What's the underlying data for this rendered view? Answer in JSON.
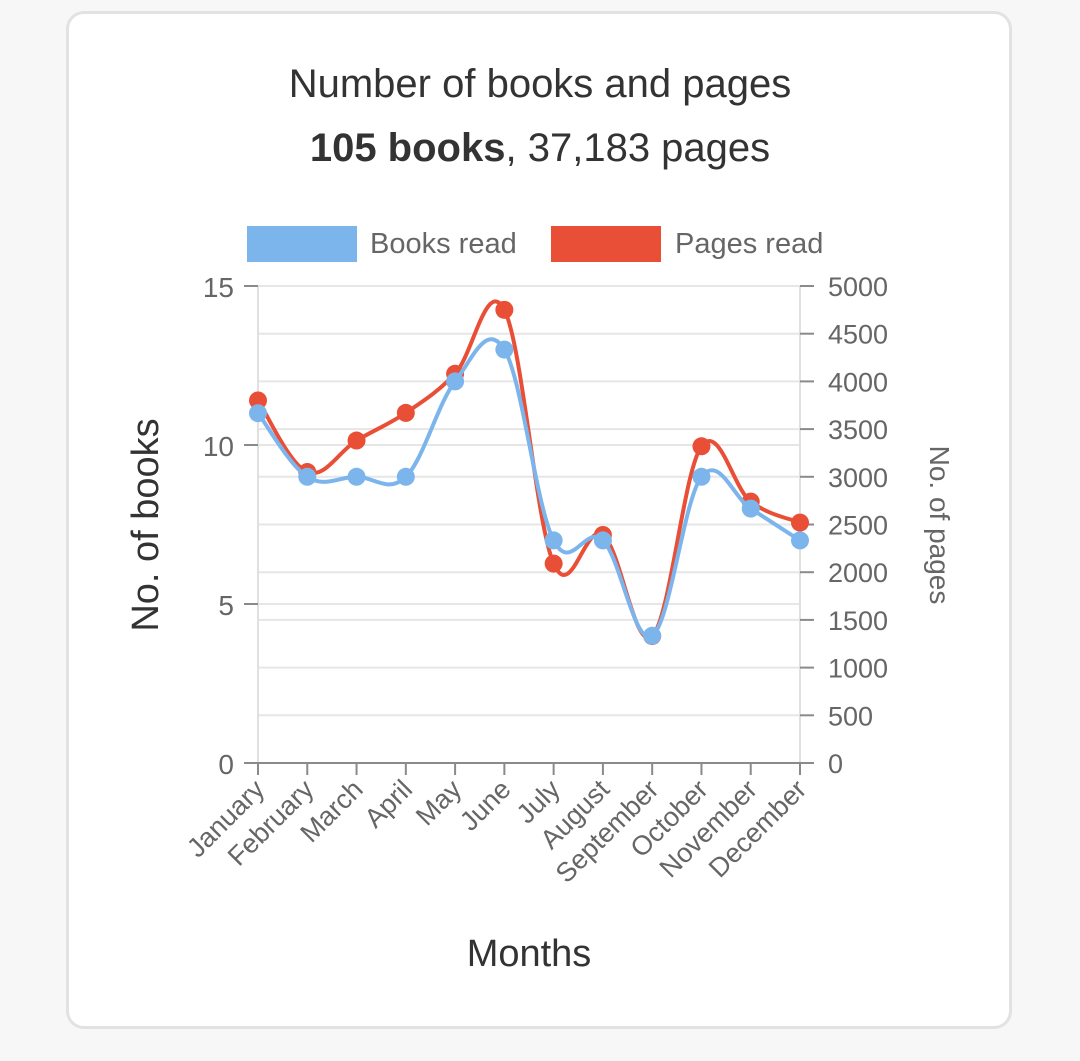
{
  "title": "Number of books and pages",
  "subtitle": {
    "books": "105 books",
    "separator": ", ",
    "pages": "37,183 pages"
  },
  "chart_data": {
    "type": "line",
    "xlabel": "Months",
    "categories": [
      "January",
      "February",
      "March",
      "April",
      "May",
      "June",
      "July",
      "August",
      "September",
      "October",
      "November",
      "December"
    ],
    "y_left": {
      "label": "No. of books",
      "range": [
        0,
        15
      ],
      "ticks": [
        0,
        5,
        10,
        15
      ]
    },
    "y_right": {
      "label": "No. of pages",
      "range": [
        0,
        5000
      ],
      "ticks": [
        0,
        500,
        1000,
        1500,
        2000,
        2500,
        3000,
        3500,
        4000,
        4500,
        5000
      ]
    },
    "series": [
      {
        "name": "Books read",
        "axis": "left",
        "color": "#7cb5ec",
        "values": [
          11,
          9,
          9,
          9,
          12,
          13,
          7,
          7,
          4,
          9,
          8,
          7
        ]
      },
      {
        "name": "Pages read",
        "axis": "right",
        "color": "#e94e37",
        "values": [
          3800,
          3050,
          3380,
          3670,
          4080,
          4750,
          2090,
          2390,
          1330,
          3320,
          2740,
          2520
        ]
      }
    ],
    "legend_position": "top",
    "grid": true
  }
}
